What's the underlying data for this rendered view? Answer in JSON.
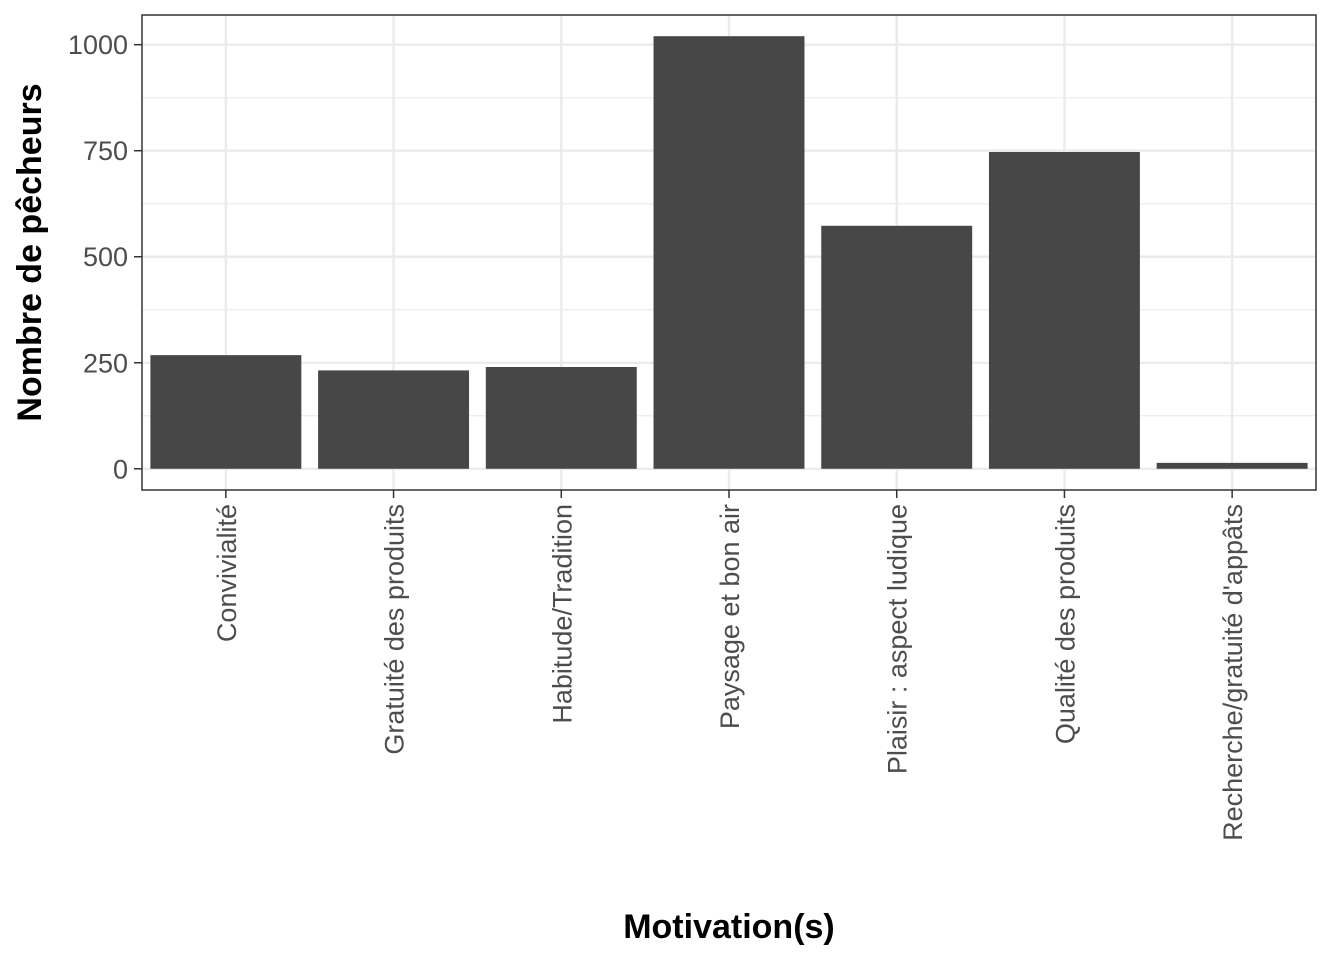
{
  "chart_data": {
    "type": "bar",
    "title": "",
    "xlabel": "Motivation(s)",
    "ylabel": "Nombre de pêcheurs",
    "categories": [
      "Convivialité",
      "Gratuité des produits",
      "Habitude/Tradition",
      "Paysage et bon air",
      "Plaisir : aspect ludique",
      "Qualité des produits",
      "Recherche/gratuité d'appâts"
    ],
    "values": [
      268,
      232,
      240,
      1020,
      573,
      747,
      14
    ],
    "ylim": [
      -50,
      1070
    ],
    "yticks": [
      0,
      250,
      500,
      750,
      1000
    ],
    "ytick_labels": [
      "0",
      "250",
      "500",
      "750",
      "1000"
    ],
    "grid": true,
    "legend": "none",
    "colors": {
      "bar": "#474747",
      "grid": "#ebebeb",
      "panel_border": "#333333",
      "tick_text": "#4d4d4d"
    }
  }
}
